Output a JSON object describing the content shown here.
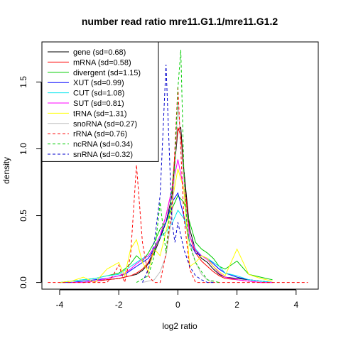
{
  "chart_data": {
    "type": "line",
    "title": "number read ratio mre11.G1.1/mre11.G1.2",
    "xlabel": "log2 ratio",
    "ylabel": "density",
    "xlim": [
      -4.6,
      4.75
    ],
    "ylim": [
      -0.05,
      1.8
    ],
    "xticks": [
      -4,
      -2,
      0,
      2,
      4
    ],
    "yticks": [
      0.0,
      0.5,
      1.0,
      1.5
    ],
    "xtick_labels": [
      "-4",
      "-2",
      "0",
      "2",
      "4"
    ],
    "ytick_labels": [
      "0.0",
      "0.5",
      "1.0",
      "1.5"
    ],
    "legend_position": "top-left",
    "grid": false,
    "series": [
      {
        "name": "gene (sd=0.68)",
        "color": "#000000",
        "dash": "solid",
        "x": [
          -3.2,
          -2.8,
          -2.4,
          -2.0,
          -1.8,
          -1.6,
          -1.4,
          -1.2,
          -1.0,
          -0.8,
          -0.6,
          -0.4,
          -0.2,
          -0.1,
          0.0,
          0.1,
          0.2,
          0.4,
          0.6,
          0.8,
          1.0,
          1.2,
          1.4,
          1.6,
          2.0,
          2.4,
          2.8,
          3.2
        ],
        "y": [
          0.0,
          0.01,
          0.02,
          0.03,
          0.04,
          0.05,
          0.06,
          0.09,
          0.14,
          0.22,
          0.33,
          0.45,
          0.65,
          0.9,
          1.14,
          1.16,
          0.85,
          0.4,
          0.24,
          0.18,
          0.15,
          0.1,
          0.06,
          0.04,
          0.03,
          0.02,
          0.01,
          0.0
        ]
      },
      {
        "name": "mRNA (sd=0.58)",
        "color": "#ff0000",
        "dash": "solid",
        "x": [
          -3.2,
          -2.8,
          -2.4,
          -2.0,
          -1.8,
          -1.6,
          -1.4,
          -1.2,
          -1.0,
          -0.8,
          -0.6,
          -0.4,
          -0.2,
          -0.1,
          0.0,
          0.1,
          0.2,
          0.4,
          0.6,
          0.8,
          1.0,
          1.2,
          1.4,
          1.6,
          2.0,
          2.4,
          2.8,
          3.2
        ],
        "y": [
          0.0,
          0.01,
          0.02,
          0.03,
          0.04,
          0.05,
          0.07,
          0.1,
          0.15,
          0.24,
          0.35,
          0.5,
          0.7,
          0.95,
          1.16,
          1.1,
          0.8,
          0.35,
          0.22,
          0.16,
          0.12,
          0.08,
          0.05,
          0.03,
          0.02,
          0.01,
          0.0,
          0.0
        ]
      },
      {
        "name": "divergent (sd=1.15)",
        "color": "#00cd00",
        "dash": "solid",
        "x": [
          -4.0,
          -3.6,
          -3.2,
          -2.8,
          -2.4,
          -2.0,
          -1.8,
          -1.6,
          -1.4,
          -1.2,
          -1.0,
          -0.8,
          -0.6,
          -0.4,
          -0.2,
          0.0,
          0.2,
          0.4,
          0.6,
          0.8,
          1.0,
          1.2,
          1.4,
          1.6,
          2.0,
          2.4,
          2.8,
          3.2
        ],
        "y": [
          0.0,
          0.01,
          0.02,
          0.03,
          0.05,
          0.07,
          0.1,
          0.14,
          0.2,
          0.16,
          0.22,
          0.3,
          0.4,
          0.45,
          0.55,
          0.65,
          0.6,
          0.45,
          0.3,
          0.25,
          0.22,
          0.18,
          0.12,
          0.1,
          0.16,
          0.06,
          0.04,
          0.02
        ]
      },
      {
        "name": "XUT (sd=0.99)",
        "color": "#0000ff",
        "dash": "solid",
        "x": [
          -4.0,
          -3.6,
          -3.2,
          -2.8,
          -2.4,
          -2.0,
          -1.8,
          -1.6,
          -1.4,
          -1.2,
          -1.0,
          -0.8,
          -0.6,
          -0.4,
          -0.2,
          0.0,
          0.2,
          0.4,
          0.6,
          0.8,
          1.0,
          1.2,
          1.4,
          1.6,
          2.0,
          2.4,
          2.8,
          3.2
        ],
        "y": [
          0.0,
          0.0,
          0.01,
          0.02,
          0.03,
          0.05,
          0.06,
          0.09,
          0.12,
          0.15,
          0.18,
          0.25,
          0.35,
          0.45,
          0.6,
          0.67,
          0.5,
          0.3,
          0.22,
          0.2,
          0.18,
          0.14,
          0.1,
          0.07,
          0.04,
          0.02,
          0.01,
          0.0
        ]
      },
      {
        "name": "CUT (sd=1.08)",
        "color": "#00e5ee",
        "dash": "solid",
        "x": [
          -4.0,
          -3.6,
          -3.2,
          -2.8,
          -2.4,
          -2.0,
          -1.8,
          -1.6,
          -1.4,
          -1.2,
          -1.0,
          -0.8,
          -0.6,
          -0.4,
          -0.2,
          0.0,
          0.2,
          0.4,
          0.6,
          0.8,
          1.0,
          1.2,
          1.4,
          1.6,
          2.0,
          2.4,
          2.8,
          3.2
        ],
        "y": [
          0.0,
          0.01,
          0.02,
          0.03,
          0.05,
          0.06,
          0.09,
          0.12,
          0.15,
          0.18,
          0.2,
          0.26,
          0.34,
          0.38,
          0.44,
          0.54,
          0.48,
          0.35,
          0.25,
          0.2,
          0.18,
          0.15,
          0.12,
          0.07,
          0.05,
          0.02,
          0.01,
          0.0
        ]
      },
      {
        "name": "SUT (sd=0.81)",
        "color": "#ff00ff",
        "dash": "solid",
        "x": [
          -3.6,
          -3.2,
          -2.8,
          -2.4,
          -2.0,
          -1.8,
          -1.6,
          -1.4,
          -1.2,
          -1.0,
          -0.8,
          -0.6,
          -0.4,
          -0.2,
          0.0,
          0.2,
          0.4,
          0.6,
          0.8,
          1.0,
          1.2,
          1.4,
          1.6,
          2.0,
          2.4,
          2.8,
          3.2
        ],
        "y": [
          0.0,
          0.0,
          0.01,
          0.03,
          0.05,
          0.07,
          0.1,
          0.14,
          0.17,
          0.2,
          0.26,
          0.35,
          0.5,
          0.7,
          0.92,
          0.7,
          0.35,
          0.24,
          0.2,
          0.17,
          0.12,
          0.07,
          0.04,
          0.02,
          0.01,
          0.0,
          0.0
        ]
      },
      {
        "name": "tRNA (sd=1.31)",
        "color": "#ffff00",
        "dash": "solid",
        "x": [
          -4.0,
          -3.6,
          -3.2,
          -2.8,
          -2.4,
          -2.0,
          -1.8,
          -1.6,
          -1.4,
          -1.2,
          -1.0,
          -0.8,
          -0.6,
          -0.4,
          -0.2,
          0.0,
          0.2,
          0.4,
          0.6,
          0.8,
          1.0,
          1.2,
          1.4,
          1.6,
          2.0,
          2.4,
          2.8,
          3.2
        ],
        "y": [
          0.0,
          0.01,
          0.04,
          0.0,
          0.1,
          0.15,
          0.05,
          0.25,
          0.32,
          0.15,
          0.08,
          0.25,
          0.2,
          0.38,
          0.6,
          0.85,
          0.7,
          0.12,
          0.15,
          0.2,
          0.18,
          0.12,
          0.08,
          0.05,
          0.25,
          0.06,
          0.03,
          0.01
        ]
      },
      {
        "name": "snoRNA (sd=0.27)",
        "color": "#bebebe",
        "dash": "solid",
        "x": [
          -1.2,
          -0.8,
          -0.6,
          -0.4,
          -0.2,
          -0.1,
          0.0,
          0.1,
          0.2,
          0.3,
          0.4,
          0.6,
          0.8,
          1.0,
          1.2
        ],
        "y": [
          0.0,
          0.02,
          0.08,
          0.2,
          0.5,
          0.85,
          1.35,
          1.05,
          0.78,
          0.5,
          0.3,
          0.15,
          0.06,
          0.02,
          0.0
        ]
      },
      {
        "name": "rRNA (sd=0.76)",
        "color": "#ff0000",
        "dash": "dashed",
        "x": [
          -4.4,
          -2.4,
          -2.2,
          -2.0,
          -1.8,
          -1.6,
          -1.4,
          -1.2,
          -1.0,
          -0.8,
          -0.6,
          -0.4,
          -0.2,
          0.0,
          0.2,
          0.4,
          0.6,
          0.8,
          1.0,
          4.4
        ],
        "y": [
          0.0,
          0.0,
          0.05,
          0.13,
          0.0,
          0.2,
          0.88,
          0.3,
          0.05,
          0.0,
          0.0,
          0.22,
          0.55,
          1.47,
          0.5,
          0.1,
          0.0,
          0.0,
          0.0,
          0.0
        ]
      },
      {
        "name": "ncRNA (sd=0.34)",
        "color": "#00cd00",
        "dash": "dashed",
        "x": [
          -1.4,
          -1.0,
          -0.8,
          -0.6,
          -0.4,
          -0.2,
          -0.1,
          0.0,
          0.1,
          0.2,
          0.3,
          0.4,
          0.6,
          0.8,
          1.0,
          1.4
        ],
        "y": [
          0.0,
          0.05,
          0.2,
          0.6,
          0.22,
          0.7,
          0.9,
          1.45,
          1.74,
          0.85,
          0.45,
          0.28,
          0.15,
          0.08,
          0.02,
          0.0
        ]
      },
      {
        "name": "snRNA (sd=0.32)",
        "color": "#0000cd",
        "dash": "dashed",
        "x": [
          -1.2,
          -1.0,
          -0.8,
          -0.6,
          -0.4,
          -0.2,
          -0.1,
          0.0,
          0.2,
          0.4,
          0.6,
          0.8,
          1.0,
          1.2
        ],
        "y": [
          0.0,
          0.1,
          0.3,
          0.65,
          1.63,
          0.45,
          0.3,
          0.45,
          0.25,
          0.12,
          0.05,
          0.02,
          0.0,
          0.0
        ]
      }
    ]
  }
}
